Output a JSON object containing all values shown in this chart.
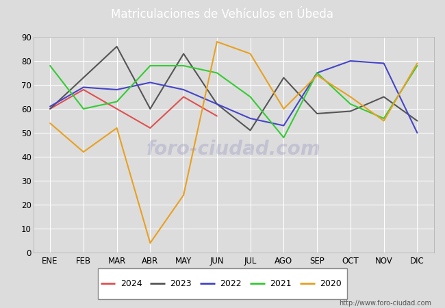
{
  "title": "Matriculaciones de Vehículos en Úbeda",
  "title_color": "white",
  "header_color": "#4169b8",
  "plot_bg_color": "#dcdcdc",
  "fig_bg_color": "#dcdcdc",
  "months": [
    "ENE",
    "FEB",
    "MAR",
    "ABR",
    "MAY",
    "JUN",
    "JUL",
    "AGO",
    "SEP",
    "OCT",
    "NOV",
    "DIC"
  ],
  "series": {
    "2024": {
      "color": "#e05050",
      "data": [
        60,
        68,
        60,
        52,
        65,
        57,
        null,
        null,
        null,
        null,
        null,
        null
      ]
    },
    "2023": {
      "color": "#555555",
      "data": [
        60,
        73,
        86,
        60,
        83,
        62,
        51,
        73,
        58,
        59,
        65,
        55
      ]
    },
    "2022": {
      "color": "#4444cc",
      "data": [
        61,
        69,
        68,
        71,
        68,
        62,
        56,
        53,
        75,
        80,
        79,
        50
      ]
    },
    "2021": {
      "color": "#33cc33",
      "data": [
        78,
        60,
        63,
        78,
        78,
        75,
        65,
        48,
        75,
        62,
        56,
        78
      ]
    },
    "2020": {
      "color": "#e8a020",
      "data": [
        54,
        42,
        52,
        4,
        24,
        88,
        83,
        60,
        74,
        65,
        55,
        79
      ]
    }
  },
  "ylim": [
    0,
    90
  ],
  "yticks": [
    0,
    10,
    20,
    30,
    40,
    50,
    60,
    70,
    80,
    90
  ],
  "watermark": "foro-ciudad.com",
  "url_text": "http://www.foro-ciudad.com",
  "legend_order": [
    "2024",
    "2023",
    "2022",
    "2021",
    "2020"
  ]
}
